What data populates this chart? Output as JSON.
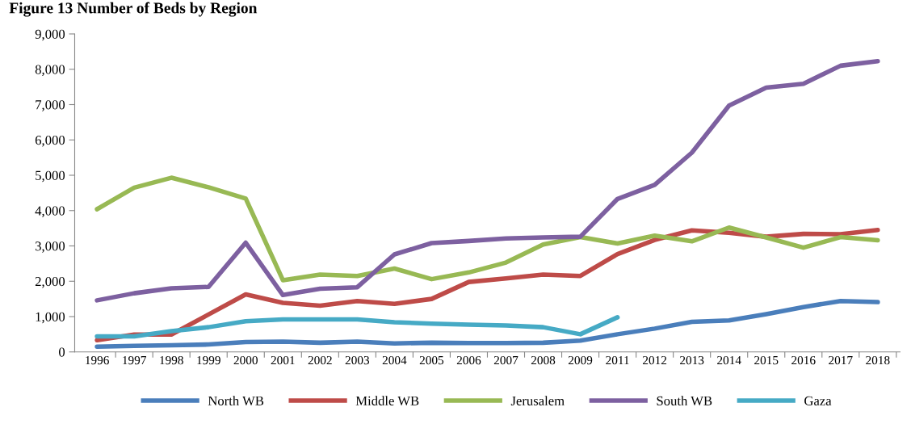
{
  "chart_data": {
    "type": "line",
    "title": "Figure 13 Number of Beds by Region",
    "categories": [
      "1996",
      "1997",
      "1998",
      "1999",
      "2000",
      "2001",
      "2002",
      "2003",
      "2004",
      "2005",
      "2006",
      "2007",
      "2008",
      "2009",
      "2011",
      "2012",
      "2013",
      "2014",
      "2015",
      "2016",
      "2017",
      "2018"
    ],
    "series": [
      {
        "name": "North WB",
        "color": "#4a7ebb",
        "values": [
          150,
          170,
          190,
          210,
          280,
          290,
          260,
          290,
          240,
          260,
          250,
          250,
          260,
          320,
          500,
          660,
          850,
          890,
          1070,
          1270,
          1440,
          1410
        ]
      },
      {
        "name": "Middle WB",
        "color": "#be4b48",
        "values": [
          330,
          490,
          490,
          1060,
          1630,
          1390,
          1310,
          1440,
          1360,
          1500,
          1980,
          2080,
          2190,
          2150,
          2770,
          3170,
          3440,
          3370,
          3260,
          3340,
          3330,
          3450
        ]
      },
      {
        "name": "Jerusalem",
        "color": "#98b954",
        "values": [
          4040,
          4650,
          4930,
          4660,
          4340,
          2030,
          2190,
          2150,
          2360,
          2060,
          2250,
          2530,
          3040,
          3250,
          3070,
          3290,
          3130,
          3520,
          3240,
          2950,
          3250,
          3160
        ]
      },
      {
        "name": "South WB",
        "color": "#7d60a0",
        "values": [
          1460,
          1660,
          1800,
          1840,
          3090,
          1610,
          1790,
          1830,
          2760,
          3080,
          3140,
          3210,
          3240,
          3260,
          4330,
          4730,
          5640,
          6970,
          7480,
          7590,
          8100,
          8230
        ]
      },
      {
        "name": "Gaza",
        "color": "#46aac5",
        "values": [
          440,
          440,
          590,
          700,
          870,
          920,
          920,
          920,
          840,
          800,
          770,
          750,
          700,
          500,
          980,
          null,
          null,
          null,
          null,
          null,
          null,
          null
        ]
      }
    ],
    "ylim": [
      0,
      9000
    ],
    "yticks": [
      {
        "value": 0,
        "label": "0"
      },
      {
        "value": 1000,
        "label": "1,000"
      },
      {
        "value": 2000,
        "label": "2,000"
      },
      {
        "value": 3000,
        "label": "3,000"
      },
      {
        "value": 4000,
        "label": "4,000"
      },
      {
        "value": 5000,
        "label": "5,000"
      },
      {
        "value": 6000,
        "label": "6,000"
      },
      {
        "value": 7000,
        "label": "7,000"
      },
      {
        "value": 8000,
        "label": "8,000"
      },
      {
        "value": 9000,
        "label": "9,000"
      }
    ],
    "grid": false,
    "legend": "bottom",
    "marker": "none",
    "line_style": "solid"
  }
}
